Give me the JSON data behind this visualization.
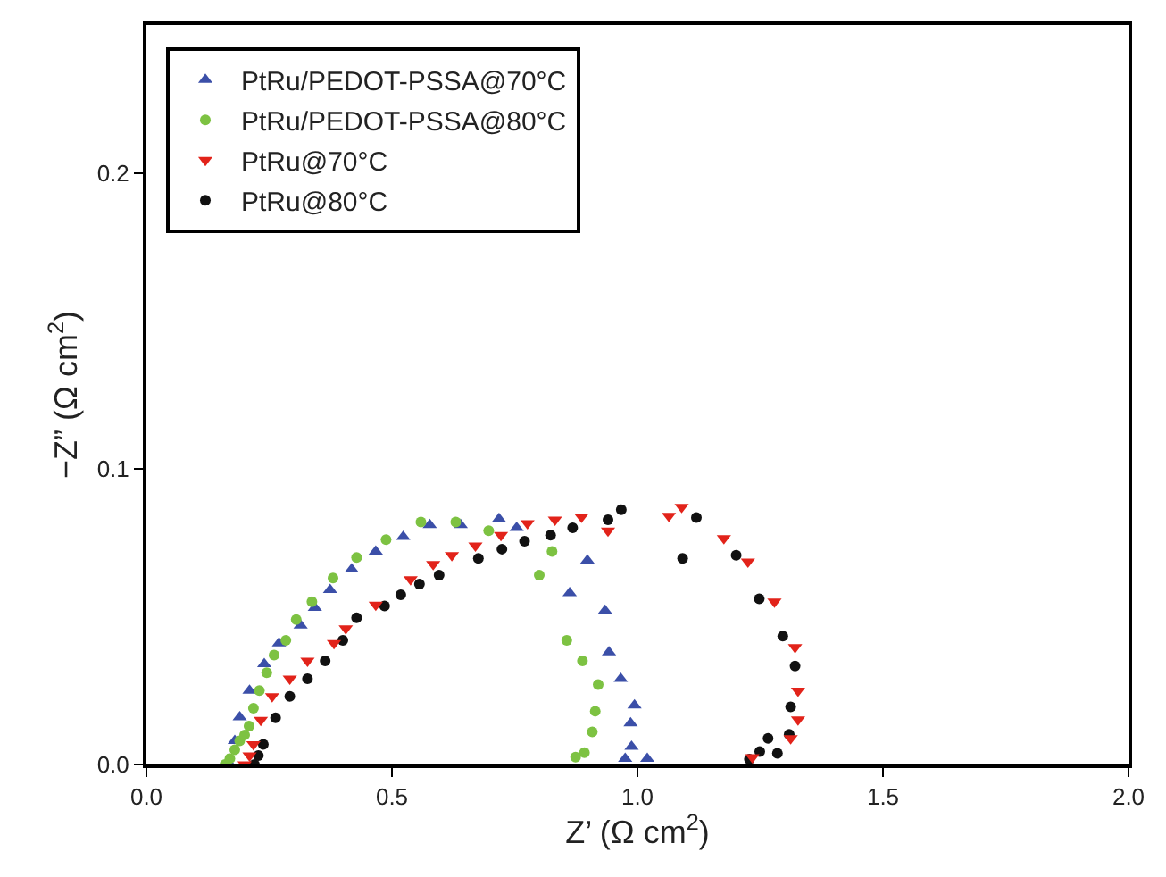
{
  "chart_data": {
    "type": "scatter",
    "xlabel": "Z’ (Ω cm$^{2}$)",
    "ylabel": "−Z” (Ω cm$^{2}$)",
    "xlim": [
      0,
      2.0
    ],
    "ylim": [
      0,
      0.25
    ],
    "xticks": [
      {
        "value": 0,
        "label": "0.0"
      },
      {
        "value": 0.5,
        "label": "0.5"
      },
      {
        "value": 1,
        "label": "1.0"
      },
      {
        "value": 1.5,
        "label": "1.5"
      },
      {
        "value": 2,
        "label": "2.0"
      }
    ],
    "yticks": [
      {
        "value": 0,
        "label": "0.0"
      },
      {
        "value": 0.1,
        "label": "0.1"
      },
      {
        "value": 0.2,
        "label": "0.2"
      }
    ],
    "legend": "top left",
    "series": [
      {
        "name": "PtRu/PEDOT-PSSA@70°C",
        "color": "#3b4fa8",
        "marker": "triangle",
        "x": [
          0.17,
          0.18,
          0.19,
          0.21,
          0.24,
          0.27,
          0.314,
          0.343,
          0.374,
          0.418,
          0.467,
          0.523,
          0.577,
          0.64,
          0.718,
          0.754,
          0.862,
          0.898,
          0.934,
          0.942,
          0.966,
          0.994,
          0.986,
          0.988,
          0.975,
          1.02
        ],
        "values": [
          0.0,
          0.008,
          0.016,
          0.025,
          0.034,
          0.041,
          0.047,
          0.053,
          0.059,
          0.066,
          0.072,
          0.077,
          0.081,
          0.081,
          0.083,
          0.08,
          0.058,
          0.069,
          0.052,
          0.038,
          0.029,
          0.02,
          0.014,
          0.006,
          0.002,
          0.002
        ]
      },
      {
        "name": "PtRu/PEDOT-PSSA@80°C",
        "color": "#7dc242",
        "marker": "circle",
        "x": [
          0.16,
          0.17,
          0.18,
          0.19,
          0.2,
          0.209,
          0.218,
          0.23,
          0.245,
          0.26,
          0.284,
          0.305,
          0.337,
          0.38,
          0.428,
          0.488,
          0.559,
          0.63,
          0.697,
          0.826,
          0.8,
          0.856,
          0.888,
          0.92,
          0.914,
          0.908,
          0.892,
          0.874
        ],
        "values": [
          0.0,
          0.002,
          0.005,
          0.008,
          0.01,
          0.013,
          0.019,
          0.025,
          0.031,
          0.037,
          0.042,
          0.049,
          0.055,
          0.063,
          0.07,
          0.076,
          0.082,
          0.082,
          0.079,
          0.072,
          0.064,
          0.042,
          0.035,
          0.027,
          0.018,
          0.011,
          0.004,
          0.0025
        ]
      },
      {
        "name": "PtRu@70°C",
        "color": "#e2231a",
        "marker": "triangle-down",
        "x": [
          0.2,
          0.21,
          0.218,
          0.233,
          0.256,
          0.292,
          0.328,
          0.382,
          0.406,
          0.467,
          0.538,
          0.584,
          0.622,
          0.67,
          0.722,
          0.776,
          0.832,
          0.886,
          0.94,
          1.064,
          1.09,
          1.176,
          1.225,
          1.279,
          1.321,
          1.327,
          1.327,
          1.312,
          1.234
        ],
        "values": [
          0.0,
          0.003,
          0.0068,
          0.015,
          0.023,
          0.029,
          0.035,
          0.041,
          0.046,
          0.054,
          0.0626,
          0.0677,
          0.0707,
          0.074,
          0.0775,
          0.0815,
          0.0827,
          0.0837,
          0.079,
          0.084,
          0.087,
          0.0765,
          0.0685,
          0.055,
          0.0396,
          0.0249,
          0.0152,
          0.0088,
          0.0024
        ]
      },
      {
        "name": "PtRu@80°C",
        "color": "#111111",
        "marker": "circle",
        "x": [
          0.22,
          0.228,
          0.238,
          0.263,
          0.292,
          0.328,
          0.364,
          0.4,
          0.428,
          0.485,
          0.518,
          0.556,
          0.596,
          0.676,
          0.724,
          0.77,
          0.823,
          0.868,
          0.94,
          0.967,
          1.092,
          1.12,
          1.201,
          1.248,
          1.296,
          1.321,
          1.312,
          1.309,
          1.266,
          1.285,
          1.249,
          1.228
        ],
        "values": [
          0.0,
          0.003,
          0.0068,
          0.0158,
          0.023,
          0.029,
          0.035,
          0.042,
          0.0496,
          0.0536,
          0.0574,
          0.061,
          0.064,
          0.0697,
          0.0728,
          0.0755,
          0.0775,
          0.08,
          0.0827,
          0.0861,
          0.0697,
          0.0835,
          0.0707,
          0.056,
          0.0434,
          0.0333,
          0.0195,
          0.0102,
          0.0088,
          0.0038,
          0.0044,
          0.0018
        ]
      }
    ]
  }
}
